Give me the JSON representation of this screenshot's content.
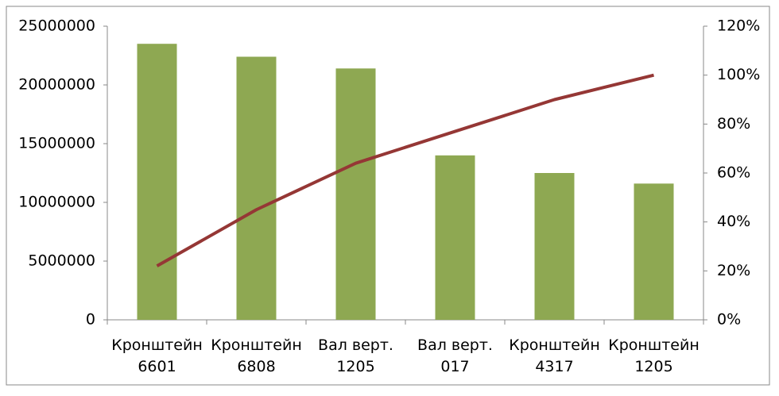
{
  "chart_data": {
    "type": "bar-line",
    "categories": [
      "Кронштейн 6601",
      "Кронштейн 6808",
      "Вал верт. 1205",
      "Вал верт. 017",
      "Кронштейн 4317",
      "Кронштейн 1205"
    ],
    "series": [
      {
        "type": "bar",
        "color": "#8ea852",
        "values": [
          23500000,
          22400000,
          21400000,
          14000000,
          12500000,
          11600000
        ]
      },
      {
        "type": "line",
        "axis": "y2",
        "color": "#953735",
        "values": [
          22,
          45,
          64,
          77,
          90,
          100
        ]
      }
    ],
    "ylim": [
      0,
      25000000
    ],
    "yticks": [
      0,
      5000000,
      10000000,
      15000000,
      20000000,
      25000000
    ],
    "y2lim": [
      0,
      120
    ],
    "y2ticks": [
      {
        "value": 0,
        "label": "0%"
      },
      {
        "value": 20,
        "label": "20%"
      },
      {
        "value": 40,
        "label": "40%"
      },
      {
        "value": 60,
        "label": "60%"
      },
      {
        "value": 80,
        "label": "80%"
      },
      {
        "value": 100,
        "label": "100%"
      },
      {
        "value": 120,
        "label": "120%"
      }
    ]
  }
}
